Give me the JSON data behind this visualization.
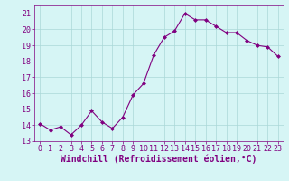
{
  "x": [
    0,
    1,
    2,
    3,
    4,
    5,
    6,
    7,
    8,
    9,
    10,
    11,
    12,
    13,
    14,
    15,
    16,
    17,
    18,
    19,
    20,
    21,
    22,
    23
  ],
  "y": [
    14.1,
    13.7,
    13.9,
    13.4,
    14.0,
    14.9,
    14.2,
    13.8,
    14.5,
    15.9,
    16.6,
    18.4,
    19.5,
    19.9,
    21.0,
    20.6,
    20.6,
    20.2,
    19.8,
    19.8,
    19.3,
    19.0,
    18.9,
    18.3
  ],
  "line_color": "#800080",
  "marker": "D",
  "marker_size": 2,
  "bg_color": "#d6f5f5",
  "grid_color": "#aad8d8",
  "xlabel": "Windchill (Refroidissement éolien,°C)",
  "xlabel_color": "#800080",
  "ylim": [
    13,
    21.5
  ],
  "yticks": [
    13,
    14,
    15,
    16,
    17,
    18,
    19,
    20,
    21
  ],
  "xticks": [
    0,
    1,
    2,
    3,
    4,
    5,
    6,
    7,
    8,
    9,
    10,
    11,
    12,
    13,
    14,
    15,
    16,
    17,
    18,
    19,
    20,
    21,
    22,
    23
  ],
  "tick_color": "#800080",
  "tick_fontsize": 6,
  "xlabel_fontsize": 7,
  "spine_color": "#800080"
}
